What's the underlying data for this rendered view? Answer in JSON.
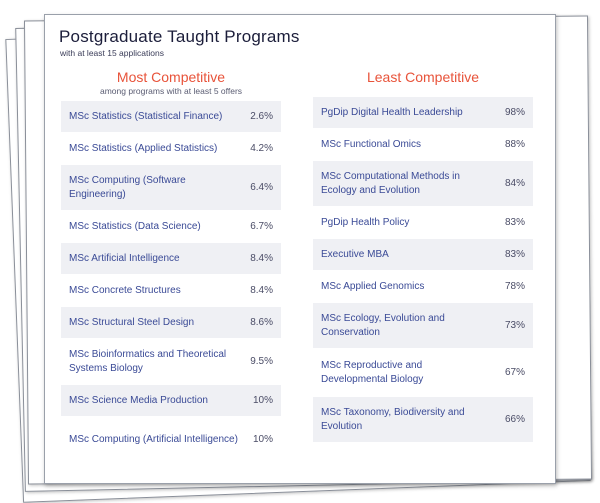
{
  "title": "Postgraduate Taught Programs",
  "subtitle": "with at least 15 applications",
  "most": {
    "heading": "Most Competitive",
    "note": "among programs with at least 5 offers",
    "rows": [
      {
        "name": "MSc Statistics (Statistical Finance)",
        "value": "2.6%"
      },
      {
        "name": "MSc Statistics (Applied Statistics)",
        "value": "4.2%"
      },
      {
        "name": "MSc Computing (Software Engineering)",
        "value": "6.4%"
      },
      {
        "name": "MSc Statistics (Data Science)",
        "value": "6.7%"
      },
      {
        "name": "MSc Artificial Intelligence",
        "value": "8.4%"
      },
      {
        "name": "MSc Concrete Structures",
        "value": "8.4%"
      },
      {
        "name": "MSc Structural Steel Design",
        "value": "8.6%"
      },
      {
        "name": "MSc Bioinformatics and Theoretical Systems Biology",
        "value": "9.5%"
      },
      {
        "name": "MSc Science Media Production",
        "value": "10%"
      },
      {
        "name": "MSc Computing (Artificial Intelligence)",
        "value": "10%"
      }
    ]
  },
  "least": {
    "heading": "Least Competitive",
    "rows": [
      {
        "name": "PgDip Digital Health Leadership",
        "value": "98%"
      },
      {
        "name": "MSc Functional Omics",
        "value": "88%"
      },
      {
        "name": "MSc Computational Methods in Ecology and Evolution",
        "value": "84%"
      },
      {
        "name": "PgDip Health Policy",
        "value": "83%"
      },
      {
        "name": "Executive MBA",
        "value": "83%"
      },
      {
        "name": "MSc Applied Genomics",
        "value": "78%"
      },
      {
        "name": "MSc Ecology, Evolution and Conservation",
        "value": "73%"
      },
      {
        "name": "MSc Reproductive and Developmental Biology",
        "value": "67%"
      },
      {
        "name": "MSc Taxonomy, Biodiversity and Evolution",
        "value": "66%"
      }
    ]
  },
  "colors": {
    "heading": "#e8533a",
    "program": "#3a4a96",
    "row_shade": "#eff0f4"
  }
}
